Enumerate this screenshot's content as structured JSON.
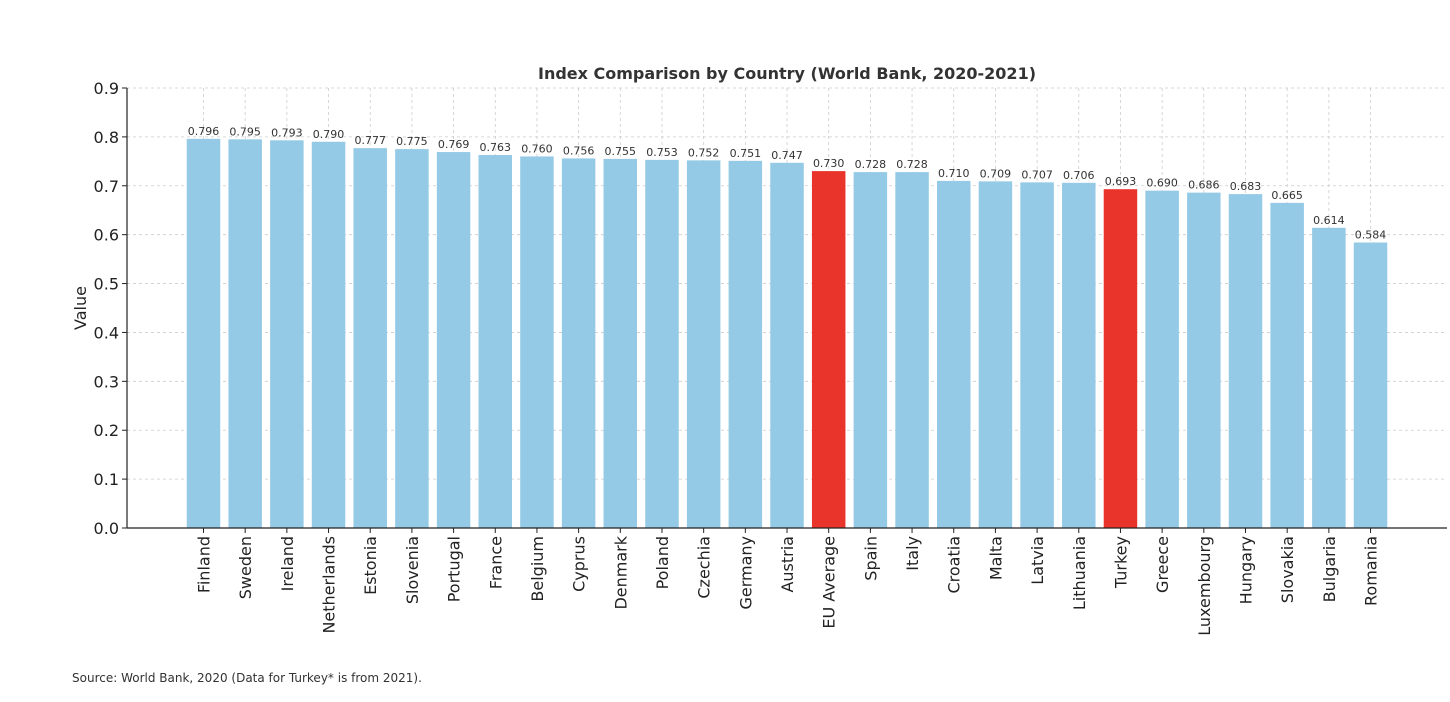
{
  "chart_data": {
    "type": "bar",
    "title": "Index Comparison by Country (World Bank, 2020-2021)",
    "xlabel": "",
    "ylabel": "Value",
    "ylim": [
      0,
      0.9
    ],
    "yticks": [
      "0.0",
      "0.1",
      "0.2",
      "0.3",
      "0.4",
      "0.5",
      "0.6",
      "0.7",
      "0.8",
      "0.9"
    ],
    "grid": true,
    "categories": [
      "Finland",
      "Sweden",
      "Ireland",
      "Netherlands",
      "Estonia",
      "Slovenia",
      "Portugal",
      "France",
      "Belgium",
      "Cyprus",
      "Denmark",
      "Poland",
      "Czechia",
      "Germany",
      "Austria",
      "EU Average",
      "Spain",
      "Italy",
      "Croatia",
      "Malta",
      "Latvia",
      "Lithuania",
      "Turkey",
      "Greece",
      "Luxembourg",
      "Hungary",
      "Slovakia",
      "Bulgaria",
      "Romania"
    ],
    "values": [
      0.796,
      0.795,
      0.793,
      0.79,
      0.777,
      0.775,
      0.769,
      0.763,
      0.76,
      0.756,
      0.755,
      0.753,
      0.752,
      0.751,
      0.747,
      0.73,
      0.728,
      0.728,
      0.71,
      0.709,
      0.707,
      0.706,
      0.693,
      0.69,
      0.686,
      0.683,
      0.665,
      0.614,
      0.584
    ],
    "data_labels": [
      "0.796",
      "0.795",
      "0.793",
      "0.790",
      "0.777",
      "0.775",
      "0.769",
      "0.763",
      "0.760",
      "0.756",
      "0.755",
      "0.753",
      "0.752",
      "0.751",
      "0.747",
      "0.730",
      "0.728",
      "0.728",
      "0.710",
      "0.709",
      "0.707",
      "0.706",
      "0.693",
      "0.690",
      "0.686",
      "0.683",
      "0.665",
      "0.614",
      "0.584"
    ],
    "highlighted": [
      "EU Average",
      "Turkey"
    ],
    "colors": {
      "default_bar": "#95cae6",
      "highlight_bar": "#e8342a",
      "grid": "#cccccc",
      "axis": "#222222"
    }
  },
  "source_note": "Source: World Bank, 2020 (Data for Turkey* is from 2021)."
}
